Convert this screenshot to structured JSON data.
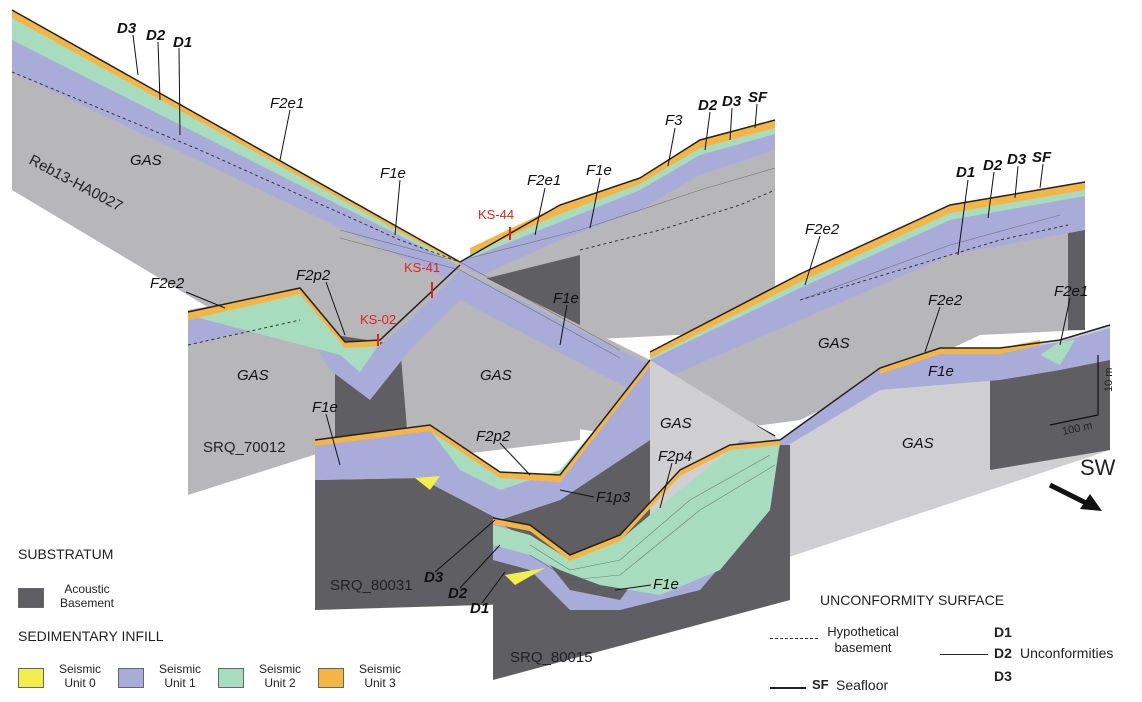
{
  "colors": {
    "gas": "#b7b7b9",
    "gas_light": "#cfcfd1",
    "basement": "#5f5f63",
    "unit0": "#f2ee4d",
    "unit1": "#a9acd9",
    "unit2": "#a8dcbf",
    "unit3": "#f5b545",
    "red": "#e0241b"
  },
  "profiles": {
    "reb": "Reb13-HA0027",
    "p70012": "SRQ_70012",
    "p80031": "SRQ_80031",
    "p80015": "SRQ_80015"
  },
  "sites": {
    "ks44": "KS-44",
    "ks41": "KS-41",
    "ks02": "KS-02"
  },
  "units": {
    "F2e1": "F2e1",
    "F2e2": "F2e2",
    "F1e": "F1e",
    "F2p2": "F2p2",
    "F3": "F3",
    "F1p3": "F1p3",
    "F2p4": "F2p4",
    "GAS": "GAS",
    "D1": "D1",
    "D2": "D2",
    "D3": "D3",
    "SF": "SF"
  },
  "scale": {
    "vertical": "10 m",
    "horizontal": "100 m"
  },
  "direction": "SW",
  "legend": {
    "substratum_title": "SUBSTRATUM",
    "acoustic_line1": "Acoustic",
    "acoustic_line2": "Basement",
    "infill_title": "SEDIMENTARY INFILL",
    "seismic": "Seismic",
    "unit0": "Unit 0",
    "unit1": "Unit 1",
    "unit2": "Unit 2",
    "unit3": "Unit 3",
    "unconformity_title": "UNCONFORMITY SURFACE",
    "hypo_line1": "Hypothetical",
    "hypo_line2": "basement",
    "d1": "D1",
    "d2": "D2",
    "d3": "D3",
    "unconformities": "Unconformities",
    "sf": "SF",
    "seafloor": "Seafloor"
  }
}
